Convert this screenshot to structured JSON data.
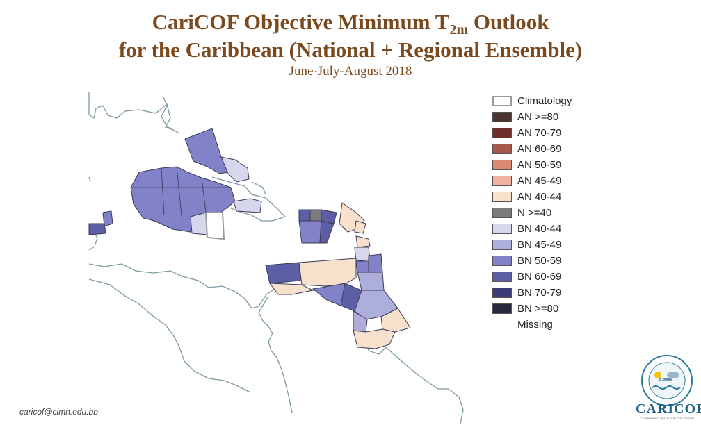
{
  "header": {
    "title_line1_pre": "CariCOF Objective Minimum T",
    "title_line1_sub": "2m",
    "title_line1_post": " Outlook",
    "title_line2": "for the Caribbean (National + Regional Ensemble)",
    "season": "June-July-August 2018"
  },
  "legend": {
    "items": [
      {
        "label": "Climatology",
        "color": "#ffffff",
        "border": "#9a9a9a"
      },
      {
        "label": "AN  >=80",
        "color": "#4a3532"
      },
      {
        "label": "AN 70-79",
        "color": "#6e2f2a"
      },
      {
        "label": "AN 60-69",
        "color": "#a45848"
      },
      {
        "label": "AN 50-59",
        "color": "#d98a70"
      },
      {
        "label": "AN 45-49",
        "color": "#f2b39e"
      },
      {
        "label": "AN 40-44",
        "color": "#f8e1cc"
      },
      {
        "label": "N >=40",
        "color": "#7b7b7b"
      },
      {
        "label": "BN 40-44",
        "color": "#d6d6ec"
      },
      {
        "label": "BN 45-49",
        "color": "#adaedb"
      },
      {
        "label": "BN 50-59",
        "color": "#8182c8"
      },
      {
        "label": "BN 60-69",
        "color": "#5c5ea6"
      },
      {
        "label": "BN 70-79",
        "color": "#3b3c75"
      },
      {
        "label": "BN  >=80",
        "color": "#27273d"
      },
      {
        "label": "Missing",
        "color": "none"
      }
    ]
  },
  "footer": {
    "email": "caricof@cimh.edu.bb",
    "logo_top_text": "CIMH",
    "logo_wordmark": "CARICOF",
    "logo_tagline": "CARIBBEAN CLIMATE OUTLOOK FORUM"
  },
  "colors": {
    "title": "#7a4a1e",
    "land_outline": "#7b9aa0",
    "zone_border": "#3a3a55"
  }
}
